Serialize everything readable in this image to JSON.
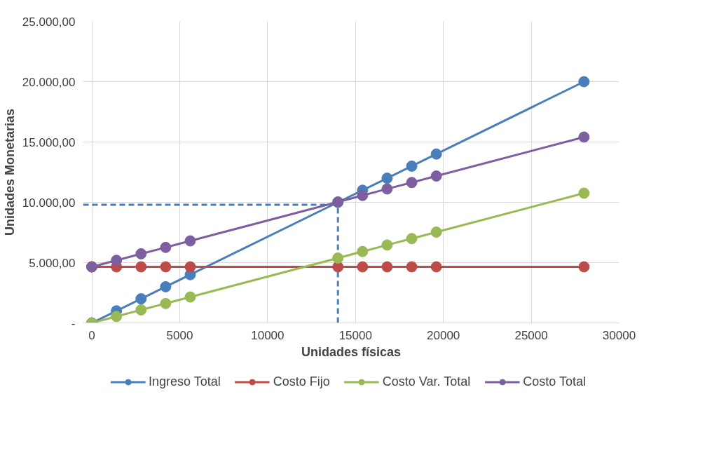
{
  "chart_data": {
    "type": "line",
    "xlabel": "Unidades físicas",
    "ylabel": "Unidades Monetarias",
    "x": [
      0,
      1400,
      2800,
      4200,
      5600,
      14000,
      15400,
      16800,
      18200,
      19600,
      28000
    ],
    "series": [
      {
        "name": "Ingreso Total",
        "color": "#4a7ebb",
        "values": [
          0,
          1000,
          2000,
          3000,
          4000,
          10000,
          11000,
          12000,
          13000,
          14000,
          20000
        ]
      },
      {
        "name": "Costo Fijo",
        "color": "#be4b48",
        "values": [
          4650,
          4650,
          4650,
          4650,
          4650,
          4650,
          4650,
          4650,
          4650,
          4650,
          4650
        ]
      },
      {
        "name": "Costo Var. Total",
        "color": "#98b954",
        "values": [
          0,
          540,
          1080,
          1610,
          2150,
          5380,
          5920,
          6460,
          6990,
          7530,
          10760
        ]
      },
      {
        "name": "Costo Total",
        "color": "#7d5fa0",
        "values": [
          4650,
          5190,
          5730,
          6260,
          6800,
          10030,
          10570,
          11110,
          11640,
          12180,
          15410
        ]
      }
    ],
    "xlim": [
      -500,
      30000
    ],
    "xticks": [
      0,
      5000,
      10000,
      15000,
      20000,
      25000,
      30000
    ],
    "ylim": [
      0,
      25000
    ],
    "yticks": [
      {
        "value": 0,
        "label": "-"
      },
      {
        "value": 5000,
        "label": "5.000,00"
      },
      {
        "value": 10000,
        "label": "10.000,00"
      },
      {
        "value": 15000,
        "label": "15.000,00"
      },
      {
        "value": 20000,
        "label": "20.000,00"
      },
      {
        "value": 25000,
        "label": "25.000,00"
      }
    ],
    "ref_lines": [
      {
        "axis": "y",
        "value": 9800,
        "color": "#4a7ebb",
        "line_style": "dashed"
      },
      {
        "axis": "x",
        "value": 14000,
        "color": "#4a7ebb",
        "line_style": "dashed"
      }
    ],
    "grid": true,
    "legend": "bottom",
    "marker": "circle",
    "line_style": "solid"
  }
}
